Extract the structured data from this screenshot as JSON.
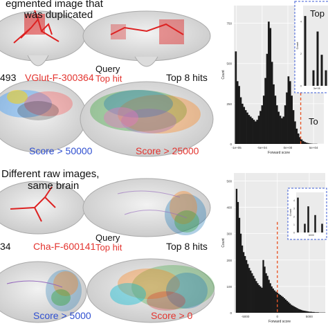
{
  "top": {
    "caption_line1": "egmented image that",
    "caption_line2": "was duplicated",
    "left_id": "493",
    "query_id": "VGlut-F-300364",
    "query_label": "Query",
    "top_hit_label": "Top hit",
    "top8_label": "Top 8 hits",
    "score_left": "Score > 50000",
    "score_right": "Score > 25000",
    "inset_partial": "Top",
    "top_marker_partial": "To"
  },
  "bottom": {
    "caption_line1": "Different raw images,",
    "caption_line2": "same brain",
    "left_id": "34",
    "query_id": "Cha-F-600141",
    "query_label": "Query",
    "top_hit_label": "Top hit",
    "top8_label": "Top 8 hits",
    "score_left": "Score > 5000",
    "score_right": "Score > 0"
  },
  "colors": {
    "red_label": "#e3342f",
    "blue_label": "#2f4fd0",
    "bar": "#1a1a1a",
    "threshold": "#e8582a",
    "inset_border": "#3b5bd6",
    "plot_bg": "#ebebeb"
  },
  "chart_data": [
    {
      "type": "bar",
      "xlabel": "Forward score",
      "ylabel": "Count",
      "x_tick_labels": [
        "-1e+05",
        "-5e+04",
        "0e+00",
        "5e+04"
      ],
      "x_ticks": [
        -100000,
        -50000,
        0,
        50000
      ],
      "y_tick_labels": [
        "0",
        "250",
        "500",
        "750"
      ],
      "y_ticks": [
        0,
        250,
        500,
        750
      ],
      "xlim": [
        -105000,
        70000
      ],
      "ylim": [
        0,
        860
      ],
      "bin_width": 3200,
      "bins_start": -103000,
      "counts": [
        575,
        390,
        360,
        290,
        250,
        230,
        210,
        195,
        180,
        170,
        160,
        150,
        140,
        150,
        175,
        205,
        240,
        300,
        410,
        560,
        760,
        720,
        510,
        370,
        300,
        240,
        200,
        175,
        160,
        170,
        240,
        320,
        420,
        390,
        300,
        210,
        140,
        95,
        65,
        42,
        28,
        18,
        12,
        8,
        5,
        3,
        2,
        1,
        1,
        1
      ],
      "threshold": 25000,
      "inset": {
        "ylabel": "Count",
        "y_tick_labels": [
          "0",
          "2",
          "4"
        ],
        "x_tick_label": "3e+05",
        "counts": [
          4.5,
          0,
          1,
          3.5,
          2,
          1
        ]
      }
    },
    {
      "type": "bar",
      "xlabel": "Forward score",
      "ylabel": "Count",
      "x_tick_labels": [
        "-5000",
        "0",
        "5000"
      ],
      "x_ticks": [
        -5000,
        0,
        5000
      ],
      "y_tick_labels": [
        "0",
        "100",
        "200",
        "300",
        "400",
        "500"
      ],
      "y_ticks": [
        0,
        100,
        200,
        300,
        400,
        500
      ],
      "xlim": [
        -6800,
        7500
      ],
      "ylim": [
        0,
        530
      ],
      "bin_width": 220,
      "bins_start": -6500,
      "counts": [
        470,
        420,
        360,
        300,
        255,
        230,
        215,
        200,
        185,
        170,
        160,
        150,
        140,
        130,
        120,
        112,
        105,
        100,
        95,
        200,
        175,
        150,
        140,
        125,
        112,
        100,
        92,
        85,
        80,
        76,
        72,
        68,
        64,
        60,
        55,
        50,
        45,
        40,
        35,
        30,
        27,
        24,
        21,
        18,
        15,
        13,
        11,
        9,
        8,
        7,
        6,
        5,
        4,
        4,
        3,
        3,
        2,
        2,
        2,
        1,
        1,
        1,
        1,
        1
      ],
      "threshold": 0,
      "inset": {
        "ylabel": "Count",
        "y_tick_labels": [
          "0",
          "1",
          "2",
          "3",
          "4"
        ],
        "x_tick_label": "6000",
        "counts": [
          4,
          0,
          1,
          3,
          0,
          2,
          0,
          1
        ]
      }
    }
  ]
}
